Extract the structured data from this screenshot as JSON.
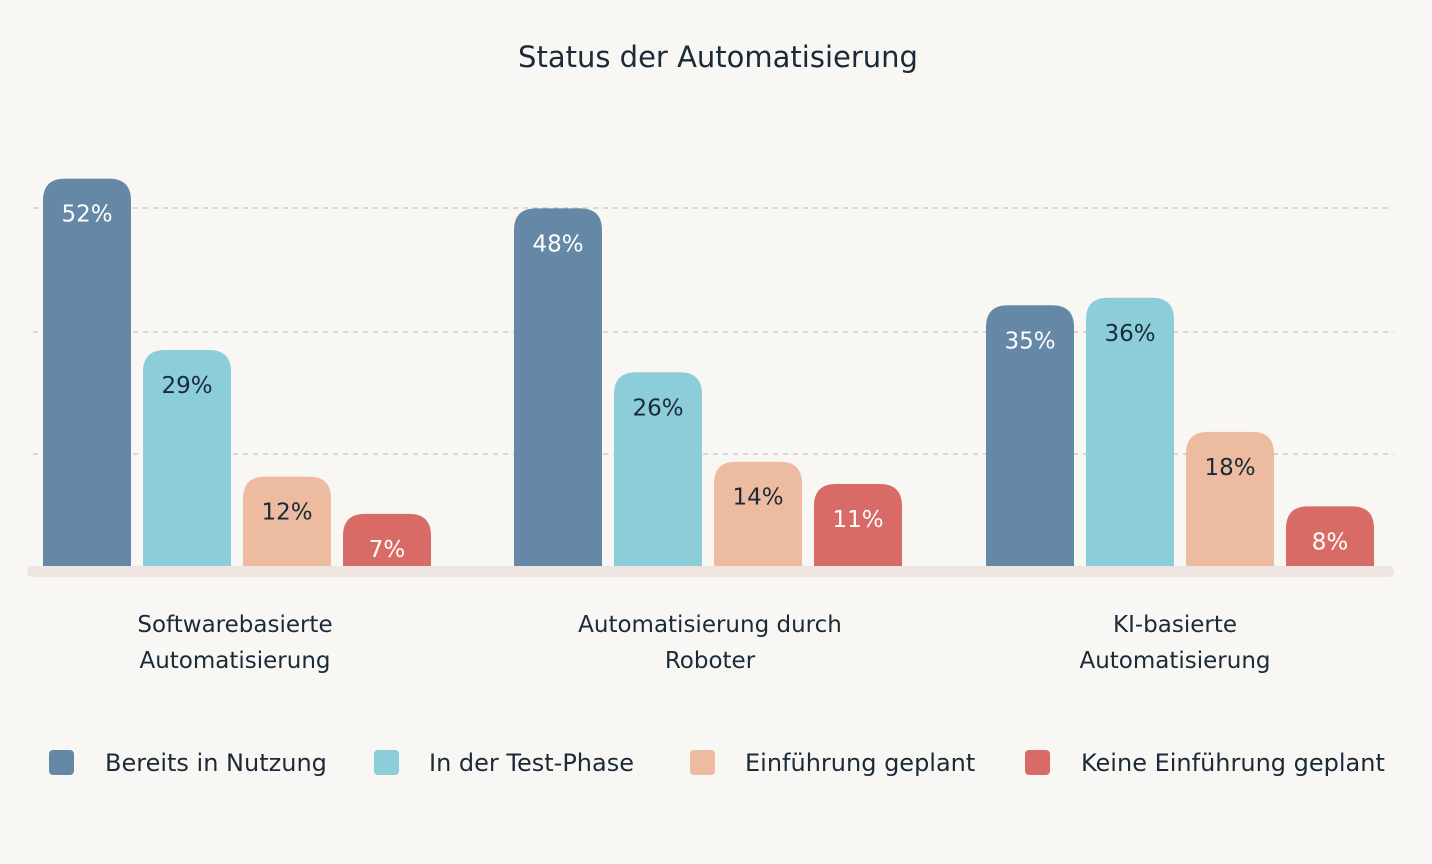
{
  "chart_data": {
    "type": "bar",
    "title": "Status der Automatisierung",
    "xlabel": "",
    "ylabel": "",
    "ylim": [
      0,
      55
    ],
    "grid": true,
    "legend_position": "bottom",
    "categories": [
      "Softwarebasierte Automatisierung",
      "Automatisierung durch Roboter",
      "KI-basierte Automatisierung"
    ],
    "category_lines": [
      [
        "Softwarebasierte",
        "Automatisierung"
      ],
      [
        "Automatisierung durch",
        "Roboter"
      ],
      [
        "KI-basierte",
        "Automatisierung"
      ]
    ],
    "series": [
      {
        "name": "Bereits in Nutzung",
        "values": [
          52,
          48,
          35
        ],
        "labels": [
          "52%",
          "48%",
          "35%"
        ],
        "color": "#6488a6",
        "label_color": "#ffffff"
      },
      {
        "name": "In der Test-Phase",
        "values": [
          29,
          26,
          36
        ],
        "labels": [
          "29%",
          "26%",
          "36%"
        ],
        "color": "#8bcdd8",
        "label_color": "#1b2a38"
      },
      {
        "name": "Einführung geplant",
        "values": [
          12,
          14,
          18
        ],
        "labels": [
          "12%",
          "14%",
          "18%"
        ],
        "color": "#edbba0",
        "label_color": "#1b2a38"
      },
      {
        "name": "Keine Einführung geplant",
        "values": [
          7,
          11,
          8
        ],
        "labels": [
          "7%",
          "11%",
          "8%"
        ],
        "color": "#d96b66",
        "label_color": "#ffffff"
      }
    ]
  }
}
